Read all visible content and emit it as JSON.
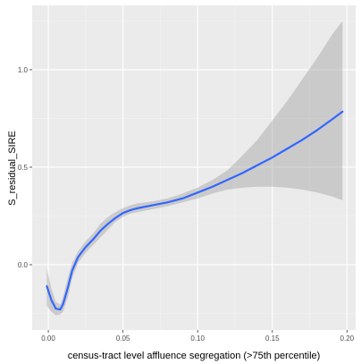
{
  "chart_data": {
    "type": "line",
    "title": "",
    "xlabel": "census-tract level affluence segregation (>75th percentile)",
    "ylabel": "S_residual_SIRE",
    "xlim": [
      -0.0108,
      0.2058
    ],
    "ylim": [
      -0.335,
      1.33
    ],
    "x_ticks": [
      0.0,
      0.05,
      0.1,
      0.15,
      0.2
    ],
    "x_tick_labels": [
      "0.00",
      "0.05",
      "0.10",
      "0.15",
      "0.20"
    ],
    "y_ticks": [
      0.0,
      0.5,
      1.0
    ],
    "y_tick_labels": [
      "0.0",
      "0.5",
      "1.0"
    ],
    "grid": true,
    "legend": "none",
    "colors": {
      "panel_background": "#ebebeb",
      "grid_major": "#ffffff",
      "grid_minor": "#f4f4f4",
      "line": "#3366ff",
      "ribbon": "#999999"
    },
    "series": [
      {
        "kind": "smooth-fit",
        "x": [
          -0.001,
          0.002,
          0.005,
          0.008,
          0.01,
          0.013,
          0.016,
          0.02,
          0.025,
          0.03,
          0.035,
          0.04,
          0.045,
          0.05,
          0.055,
          0.06,
          0.07,
          0.08,
          0.09,
          0.1,
          0.11,
          0.12,
          0.13,
          0.14,
          0.15,
          0.16,
          0.17,
          0.18,
          0.19,
          0.197
        ],
        "y": [
          -0.11,
          -0.18,
          -0.225,
          -0.23,
          -0.2,
          -0.12,
          -0.03,
          0.04,
          0.09,
          0.13,
          0.175,
          0.21,
          0.24,
          0.265,
          0.28,
          0.29,
          0.305,
          0.32,
          0.34,
          0.37,
          0.4,
          0.435,
          0.47,
          0.51,
          0.55,
          0.595,
          0.64,
          0.69,
          0.745,
          0.785
        ],
        "lower": [
          -0.21,
          -0.24,
          -0.26,
          -0.255,
          -0.24,
          -0.17,
          -0.07,
          0.01,
          0.06,
          0.1,
          0.14,
          0.18,
          0.22,
          0.245,
          0.262,
          0.27,
          0.285,
          0.3,
          0.32,
          0.34,
          0.365,
          0.385,
          0.395,
          0.4,
          0.4,
          0.395,
          0.385,
          0.37,
          0.35,
          0.33
        ],
        "upper": [
          -0.02,
          -0.12,
          -0.19,
          -0.205,
          -0.16,
          -0.07,
          0.01,
          0.07,
          0.12,
          0.16,
          0.21,
          0.245,
          0.27,
          0.29,
          0.305,
          0.315,
          0.325,
          0.34,
          0.365,
          0.395,
          0.435,
          0.485,
          0.56,
          0.64,
          0.74,
          0.84,
          0.95,
          1.06,
          1.18,
          1.25
        ]
      }
    ]
  }
}
